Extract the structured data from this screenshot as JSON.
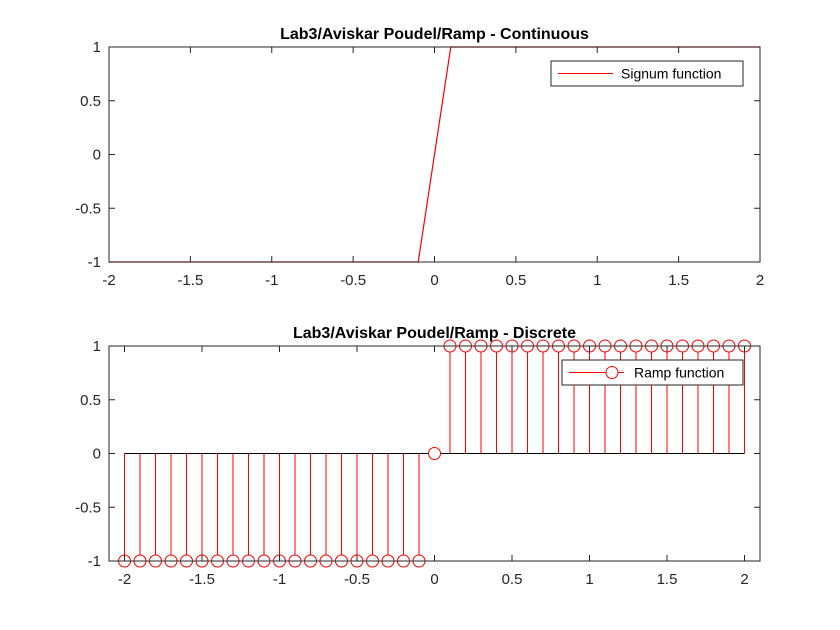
{
  "chart_data": [
    {
      "type": "line",
      "title": "Lab3/Aviskar Poudel/Ramp - Continuous",
      "xlabel": "",
      "ylabel": "",
      "xlim": [
        -2,
        2
      ],
      "ylim": [
        -1,
        1
      ],
      "xticks": [
        "-2",
        "-1.5",
        "-1",
        "-0.5",
        "0",
        "0.5",
        "1",
        "1.5",
        "2"
      ],
      "yticks": [
        "-1",
        "-0.5",
        "0",
        "0.5",
        "1"
      ],
      "grid": false,
      "legend": "top-right",
      "series": [
        {
          "name": "Signum function",
          "color": "#ff0000",
          "x": [
            -2,
            -0.1,
            0.1,
            2
          ],
          "y": [
            -1,
            -1,
            1,
            1
          ]
        }
      ]
    },
    {
      "type": "stem",
      "title": "Lab3/Aviskar Poudel/Ramp - Discrete",
      "xlabel": "",
      "ylabel": "",
      "xlim": [
        -2.1,
        2.1
      ],
      "ylim": [
        -1,
        1
      ],
      "xticks": [
        "-2",
        "-1.5",
        "-1",
        "-0.5",
        "0",
        "0.5",
        "1",
        "1.5",
        "2"
      ],
      "yticks": [
        "-1",
        "-0.5",
        "0",
        "0.5",
        "1"
      ],
      "grid": false,
      "legend": "top-right",
      "series": [
        {
          "name": "Ramp function",
          "color": "#ff0000",
          "x": [
            -2,
            -1.9,
            -1.8,
            -1.7,
            -1.6,
            -1.5,
            -1.4,
            -1.3,
            -1.2,
            -1.1,
            -1,
            -0.9,
            -0.8,
            -0.7,
            -0.6,
            -0.5,
            -0.4,
            -0.3,
            -0.2,
            -0.1,
            0,
            0.1,
            0.2,
            0.3,
            0.4,
            0.5,
            0.6,
            0.7,
            0.8,
            0.9,
            1,
            1.1,
            1.2,
            1.3,
            1.4,
            1.5,
            1.6,
            1.7,
            1.8,
            1.9,
            2
          ],
          "y": [
            -1,
            -1,
            -1,
            -1,
            -1,
            -1,
            -1,
            -1,
            -1,
            -1,
            -1,
            -1,
            -1,
            -1,
            -1,
            -1,
            -1,
            -1,
            -1,
            -1,
            0,
            1,
            1,
            1,
            1,
            1,
            1,
            1,
            1,
            1,
            1,
            1,
            1,
            1,
            1,
            1,
            1,
            1,
            1,
            1,
            1
          ]
        }
      ]
    }
  ]
}
